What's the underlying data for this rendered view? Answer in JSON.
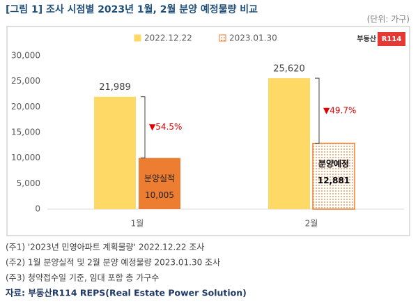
{
  "chart_data": {
    "type": "bar",
    "title": "[그림 1] 조사 시점별 2023년 1월, 2월 분양 예정물량 비교",
    "unit": "(단위: 가구)",
    "logo": [
      "부동산",
      "R114"
    ],
    "categories": [
      "1월",
      "2월"
    ],
    "series": [
      {
        "name": "2022.12.22",
        "color": "#ffd966",
        "values": [
          21989,
          25620
        ],
        "value_labels": [
          "21,989",
          "25,620"
        ]
      },
      {
        "name": "2023.01.30",
        "color": "#ed7d31",
        "values": [
          10005,
          12881
        ],
        "value_labels": [
          "10,005",
          "12,881"
        ],
        "notes": [
          "분양실적",
          "분양예정"
        ],
        "dotted": [
          false,
          true
        ]
      }
    ],
    "annotations": [
      "▼54.5%",
      "▼49.7%"
    ],
    "ylim": [
      0,
      30000
    ],
    "yticks": [
      0,
      {
        "value": 5000,
        "label": "5,000"
      },
      {
        "value": 10000,
        "label": "10,000"
      },
      {
        "value": 15000,
        "label": "15,000"
      },
      {
        "value": 20000,
        "label": "20,000"
      },
      {
        "value": 25000,
        "label": "25,000"
      },
      {
        "value": 30000,
        "label": "30,000"
      }
    ],
    "notes": [
      "(주1) '2023년 민영아파트 계획물량' 2022.12.22 조사",
      "(주2) 1월 분양실적 및 2월 분양 예정물량 2023.01.30 조사",
      "(주3) 청약접수일 기준, 임대 포함 총 가구수"
    ],
    "source": "자료: 부동산R114 REPS(Real Estate Power Solution)"
  }
}
